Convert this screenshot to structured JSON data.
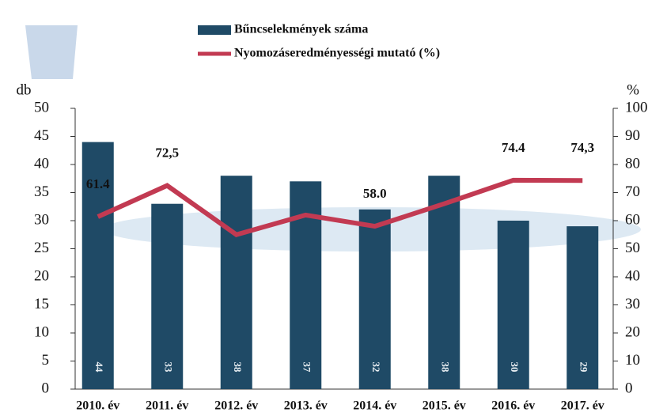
{
  "chart_data": {
    "type": "bar-line",
    "categories": [
      "2010. év",
      "2011. év",
      "2012. év",
      "2013. év",
      "2014. év",
      "2015. év",
      "2016. év",
      "2017. év"
    ],
    "series": [
      {
        "name": "Bűncselekmények száma",
        "color": "#1f4a66",
        "type": "bar",
        "values": [
          44,
          33,
          38,
          37,
          32,
          38,
          30,
          29
        ]
      },
      {
        "name": "Nyomozáseredményességi mutató (%)",
        "color": "#c23a52",
        "type": "line",
        "axis": "y2",
        "values": [
          61.4,
          72.5,
          55,
          62,
          58.0,
          66,
          74.4,
          74.3
        ],
        "value_labels": [
          "61.4",
          "72,5",
          null,
          null,
          "58.0",
          null,
          "74.4",
          "74,3"
        ]
      }
    ],
    "ylabel": "db",
    "y2label": "%",
    "ylim": [
      0,
      50
    ],
    "yticks": [
      0,
      5,
      10,
      15,
      20,
      25,
      30,
      35,
      40,
      45,
      50
    ],
    "y2lim": [
      0,
      100
    ],
    "y2ticks": [
      0,
      10,
      20,
      30,
      40,
      50,
      60,
      70,
      80,
      90,
      100
    ],
    "legend": "top"
  }
}
